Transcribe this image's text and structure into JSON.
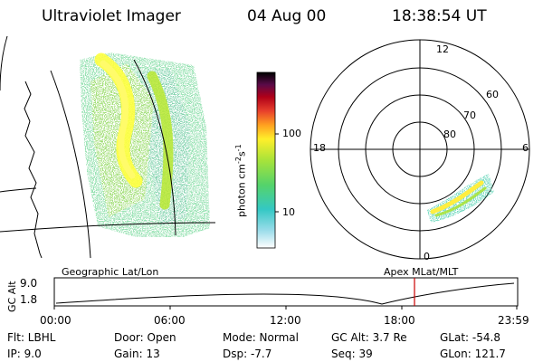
{
  "header": {
    "instrument": "Ultraviolet Imager",
    "date": "04 Aug 00",
    "time": "18:38:54 UT"
  },
  "geo_panel": {
    "label": "Geographic Lat/Lon"
  },
  "polar_panel": {
    "label": "Apex MLat/MLT",
    "mlt_labels": {
      "top": "12",
      "right": "6",
      "bottom": "0",
      "left": "18"
    },
    "lat_labels": [
      "60",
      "70",
      "80"
    ]
  },
  "colorbar": {
    "unit": "photon cm",
    "unit_exp1": "-2",
    "unit_mid": "s",
    "unit_exp2": "-1",
    "ticks": [
      "100",
      "10"
    ]
  },
  "timeline": {
    "ylabel": "GC Alt",
    "ytick_high": "9.0",
    "ytick_low": "1.8",
    "xticks": [
      "00:00",
      "06:00",
      "12:00",
      "18:00",
      "23:59"
    ],
    "current_marker_color": "#cc0000"
  },
  "info": {
    "filter": "Flt: LBHL",
    "ip": "IP:  9.0",
    "door": "Door: Open",
    "gain": "Gain: 13",
    "mode": "Mode: Normal",
    "dsp": "Dsp:   -7.7",
    "gc_alt": "GC Alt: 3.7 Re",
    "seq": "Seq: 39",
    "glat": "GLat: -54.8",
    "glon": "GLon: 121.7"
  }
}
